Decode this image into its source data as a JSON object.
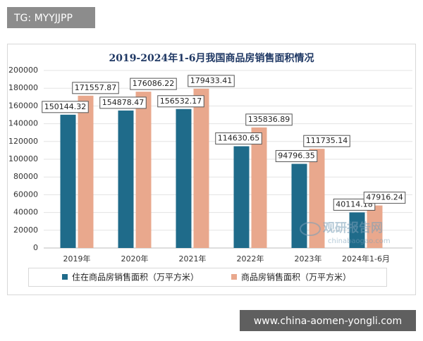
{
  "top_tag": "TG: MYYJJPP",
  "bottom_url": "www.china-aomen-yongli.com",
  "logo": {
    "name": "观研报告网",
    "url": "chinabaogao.com"
  },
  "chart_data": {
    "type": "bar",
    "title": "2019-2024年1-6月我国商品房销售面积情况",
    "categories": [
      "2019年",
      "2020年",
      "2021年",
      "2022年",
      "2023年",
      "2024年1-6月"
    ],
    "series": [
      {
        "name": "住在商品房销售面积（万平方米）",
        "color": "#1f6b8a",
        "values": [
          150144.32,
          154878.47,
          156532.17,
          114630.65,
          94796.35,
          40114.18
        ]
      },
      {
        "name": "商品房销售面积（万平方米）",
        "color": "#e9a88d",
        "values": [
          171557.87,
          176086.22,
          179433.41,
          135836.89,
          111735.14,
          47916.24
        ]
      }
    ],
    "ylim": [
      0,
      200000
    ],
    "yticks": [
      0,
      20000,
      40000,
      60000,
      80000,
      100000,
      120000,
      140000,
      160000,
      180000,
      200000
    ],
    "grid": true,
    "legend": "bottom"
  }
}
